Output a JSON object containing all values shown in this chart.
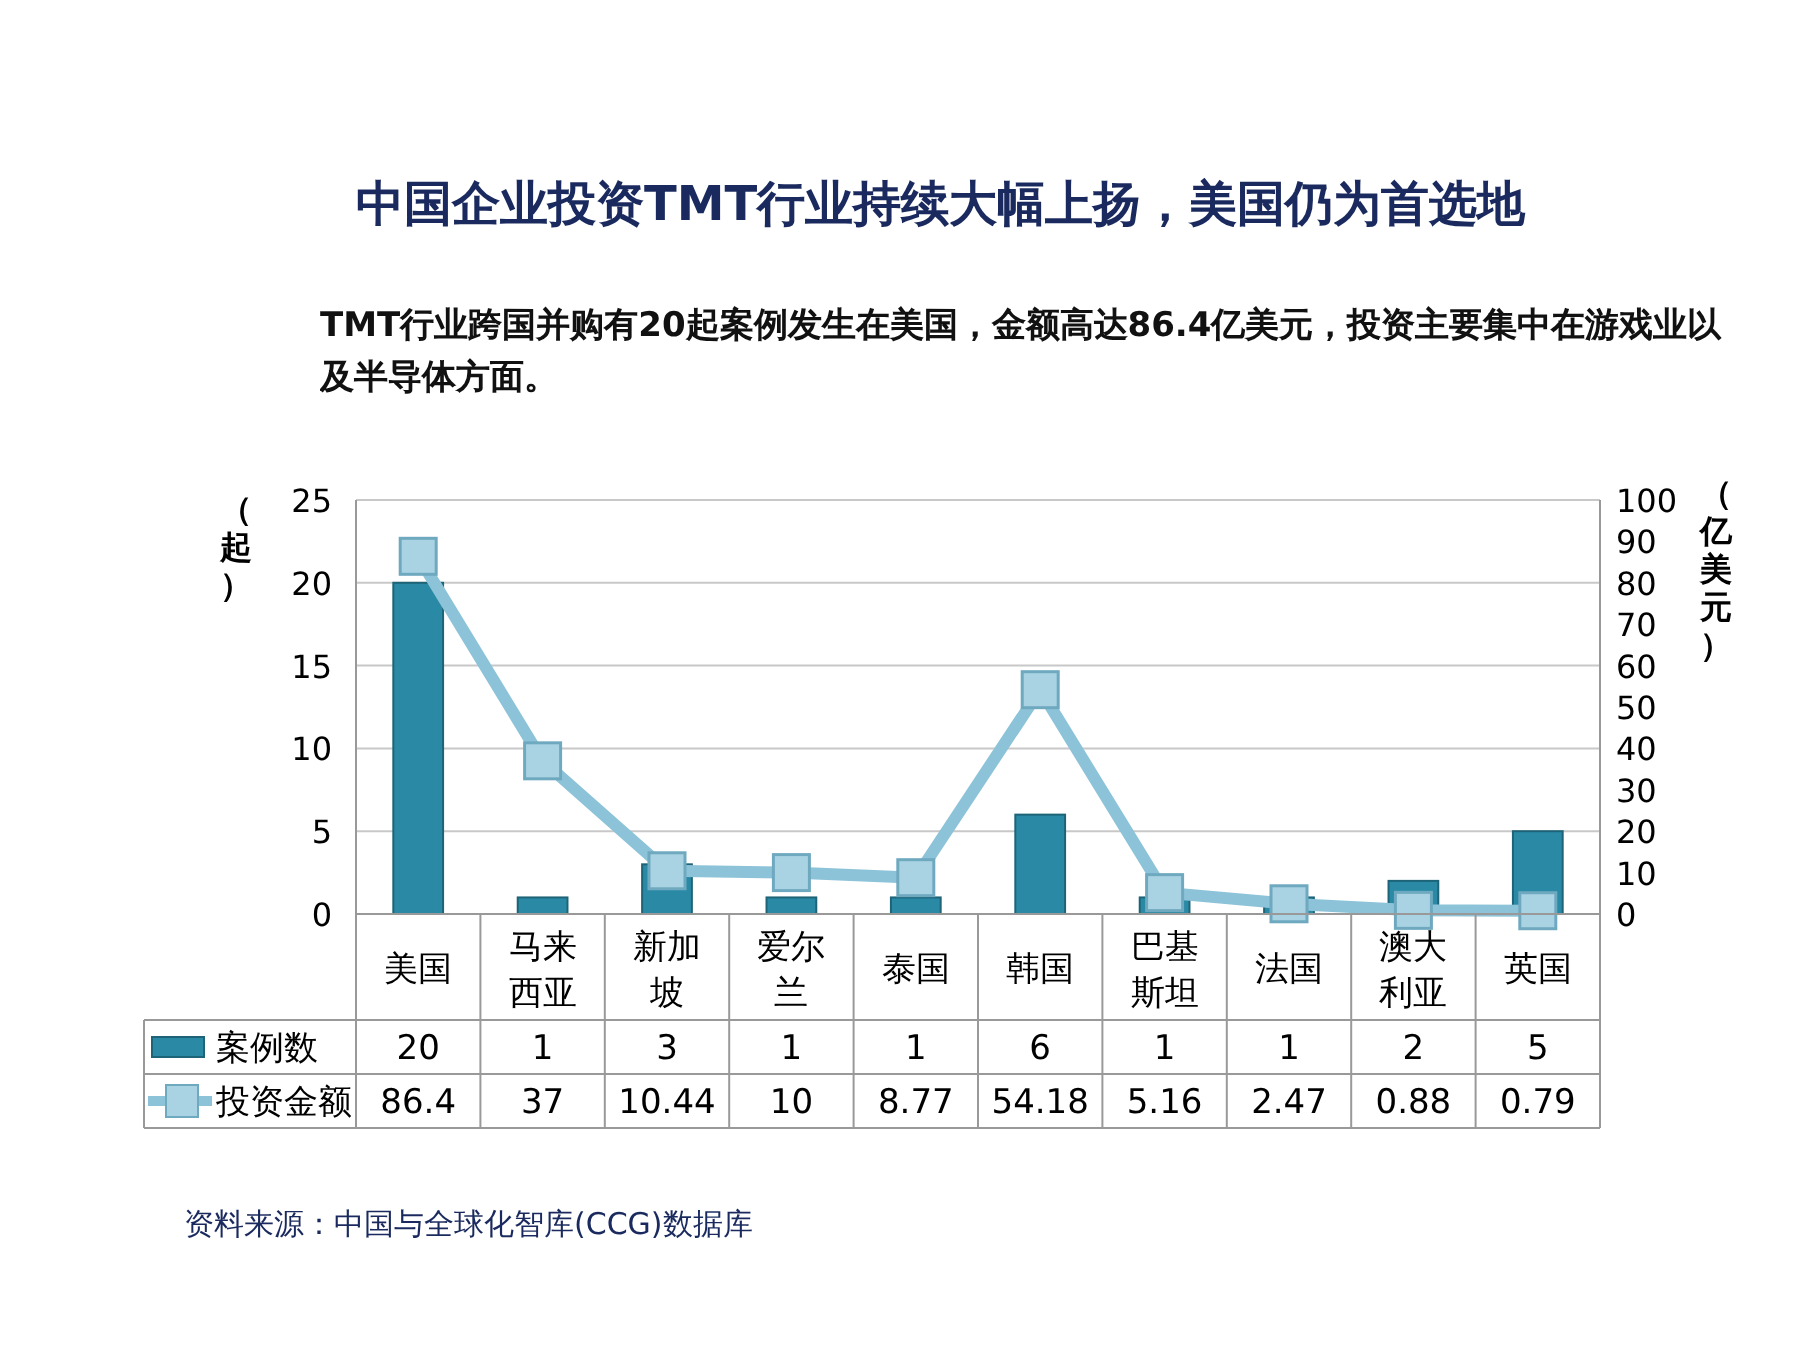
{
  "chart_data": {
    "type": "bar",
    "title": "中国企业投资TMT行业持续大幅上扬，美国仍为首选地",
    "subtitle": "TMT行业跨国并购有20起案例发生在美国，金额高达86.4亿美元，投资主要集中在游戏业以及半导体方面。",
    "ylabel": "（起）",
    "y2label": "（亿美元）",
    "categories": [
      "美国",
      "马来西亚",
      "新加坡",
      "爱尔兰",
      "泰国",
      "韩国",
      "巴基斯坦",
      "法国",
      "澳大利亚",
      "英国"
    ],
    "series": [
      {
        "name": "案例数",
        "color": "#2a8aa6",
        "values": [
          20,
          1,
          3,
          1,
          1,
          6,
          1,
          1,
          2,
          5
        ]
      },
      {
        "name": "投资金额",
        "type": "line",
        "axis": "y2",
        "color": "#8cc3d8",
        "marker": "square",
        "values": [
          86.4,
          37,
          10.44,
          10,
          8.77,
          54.18,
          5.16,
          2.47,
          0.88,
          0.79
        ]
      }
    ],
    "ylim": [
      0,
      25
    ],
    "yticks": [
      0,
      5,
      10,
      15,
      20,
      25
    ],
    "y2lim": [
      0,
      100
    ],
    "y2ticks": [
      0,
      10,
      20,
      30,
      40,
      50,
      60,
      70,
      80,
      90,
      100
    ],
    "grid": "y",
    "legend": "bottom left",
    "data_labels": true,
    "annotations": [
      "资料来源：中国与全球化智库(CCG)数据库"
    ]
  }
}
